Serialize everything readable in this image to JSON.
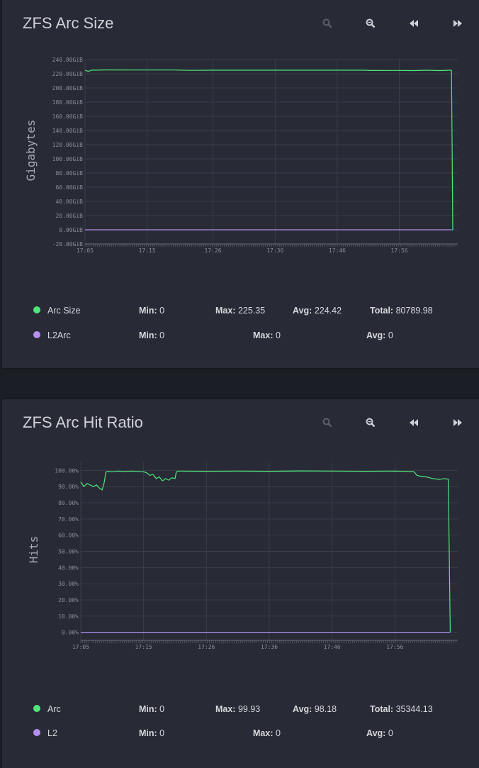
{
  "colors": {
    "arc": "#4ee87a",
    "l2": "#b48ef0",
    "grid": "#3a3d4a",
    "tick": "#8a8c96"
  },
  "panels": [
    {
      "title": "ZFS Arc Size",
      "toolbar": [
        "zoom-in-icon",
        "zoom-out-icon",
        "rewind-icon",
        "fast-forward-icon"
      ],
      "legend": [
        {
          "name": "Arc Size",
          "min_label": "Min:",
          "min": "0",
          "max_label": "Max:",
          "max": "225.35",
          "avg_label": "Avg:",
          "avg": "224.42",
          "total_label": "Total:",
          "total": "80789.98"
        },
        {
          "name": "L2Arc",
          "min_label": "Min:",
          "min": "0",
          "max_label": "Max:",
          "max": "0",
          "avg_label": "Avg:",
          "avg": "0"
        }
      ]
    },
    {
      "title": "ZFS Arc Hit Ratio",
      "toolbar": [
        "zoom-in-icon",
        "zoom-out-icon",
        "rewind-icon",
        "fast-forward-icon"
      ],
      "legend": [
        {
          "name": "Arc",
          "min_label": "Min:",
          "min": "0",
          "max_label": "Max:",
          "max": "99.93",
          "avg_label": "Avg:",
          "avg": "98.18",
          "total_label": "Total:",
          "total": "35344.13"
        },
        {
          "name": "L2",
          "min_label": "Min:",
          "min": "0",
          "max_label": "Max:",
          "max": "0",
          "avg_label": "Avg:",
          "avg": "0"
        }
      ]
    }
  ],
  "chart_data": [
    {
      "type": "line",
      "title": "ZFS Arc Size",
      "ylabel": "Gigabytes",
      "ylim": [
        -20,
        240
      ],
      "yticks": [
        240,
        220,
        200,
        180,
        160,
        140,
        120,
        100,
        80,
        60,
        40,
        20,
        0,
        -20
      ],
      "ytick_labels": [
        "240.00GiB",
        "220.00GiB",
        "200.00GiB",
        "180.00GiB",
        "160.00GiB",
        "140.00GiB",
        "120.00GiB",
        "100.00GiB",
        "80.00GiB",
        "60.00GiB",
        "40.00GiB",
        "20.00GiB",
        "0.00GiB",
        "-20.00GiB"
      ],
      "xticks": [
        "17:05",
        "17:15",
        "17:26",
        "17:36",
        "17:46",
        "17:56"
      ],
      "xlim_minutes": [
        0,
        60
      ],
      "xtick_minutes": [
        0,
        10,
        20.6,
        30.6,
        40.6,
        50.6
      ],
      "grid": true,
      "series": [
        {
          "name": "Arc Size",
          "x": [
            0,
            0.3,
            0.6,
            1,
            3,
            8,
            14,
            17,
            20,
            26,
            30,
            36,
            40,
            45,
            46,
            50,
            53,
            55,
            57,
            59,
            59.2
          ],
          "y": [
            225,
            224,
            223.5,
            225,
            225.4,
            225.3,
            225.3,
            224.8,
            225,
            225,
            225,
            225,
            225,
            225,
            224.6,
            224.7,
            224.5,
            225,
            224.5,
            225,
            0
          ]
        },
        {
          "name": "L2Arc",
          "x": [
            0,
            59.2
          ],
          "y": [
            0,
            0
          ]
        }
      ]
    },
    {
      "type": "line",
      "title": "ZFS Arc Hit Ratio",
      "ylabel": "Hits",
      "ylim": [
        -5,
        105
      ],
      "yticks": [
        100,
        90,
        80,
        70,
        60,
        50,
        40,
        30,
        20,
        10,
        0
      ],
      "ytick_labels": [
        "100.00%",
        "90.00%",
        "80.00%",
        "70.00%",
        "60.00%",
        "50.00%",
        "40.00%",
        "30.00%",
        "20.00%",
        "10.00%",
        "0.00%"
      ],
      "xticks": [
        "17:05",
        "17:15",
        "17:26",
        "17:36",
        "17:46",
        "17:56"
      ],
      "xlim_minutes": [
        0,
        60
      ],
      "xtick_minutes": [
        0,
        10,
        20,
        30,
        40,
        50
      ],
      "grid": true,
      "series": [
        {
          "name": "Arc",
          "x": [
            0,
            0.5,
            1,
            1.5,
            2,
            2.5,
            3,
            3.4,
            3.7,
            4,
            4.3,
            5,
            6,
            7,
            8,
            10,
            10.5,
            11,
            11.5,
            12,
            12.5,
            13,
            13.5,
            14,
            14.5,
            15,
            15.2,
            15.5,
            20,
            25,
            30,
            35,
            40,
            45,
            50,
            53,
            53.5,
            54,
            55,
            56,
            57,
            58,
            58.5,
            58.8
          ],
          "y": [
            93,
            90,
            92,
            91,
            90,
            91,
            89,
            88,
            92,
            99,
            99.5,
            99.2,
            99.6,
            99.3,
            99.6,
            99.2,
            98.5,
            97,
            97.5,
            95,
            96,
            93.5,
            95,
            94,
            95.5,
            95,
            99,
            99.6,
            99.5,
            99.6,
            99.5,
            99.7,
            99.6,
            99.5,
            99.6,
            99.3,
            97,
            96.5,
            96,
            95,
            94.5,
            95,
            94.5,
            0
          ]
        },
        {
          "name": "L2",
          "x": [
            0,
            58.8
          ],
          "y": [
            0,
            0
          ]
        }
      ]
    }
  ]
}
